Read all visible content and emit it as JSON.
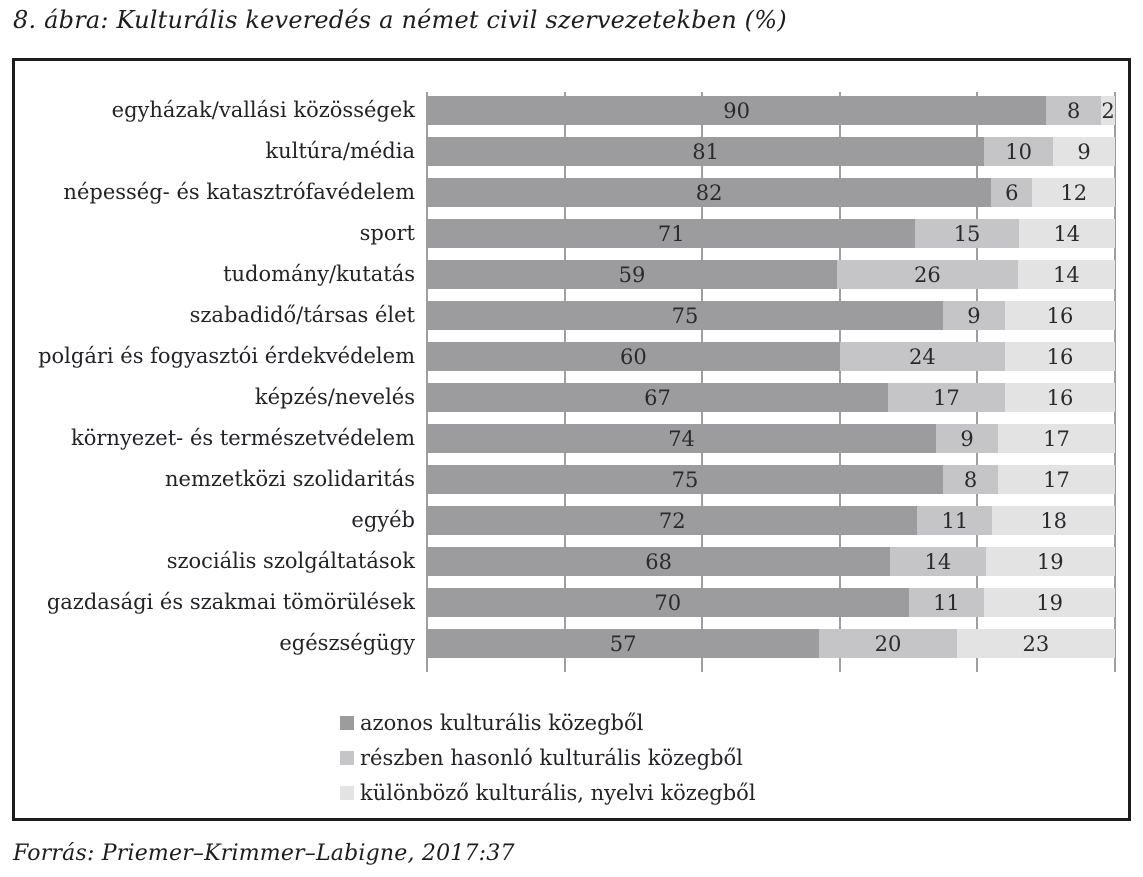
{
  "title": "8. ábra: Kulturális keveredés a német civil szervezetekben (%)",
  "source": "Forrás: Priemer–Krimmer–Labigne, 2017:37",
  "colors": {
    "same": "#9c9c9f",
    "partial": "#c5c5c7",
    "different": "#e3e3e4",
    "gridline": "#9e9ea1",
    "frame_border": "#1c1c1c",
    "text": "#232327"
  },
  "legend": [
    {
      "label": "azonos kulturális közegből",
      "color_key": "same"
    },
    {
      "label": "részben hasonló kulturális közegből",
      "color_key": "partial"
    },
    {
      "label": "különböző kulturális, nyelvi közegből",
      "color_key": "different"
    }
  ],
  "chart_data": {
    "type": "bar",
    "orientation": "horizontal",
    "stacked": true,
    "unit": "%",
    "title": "8. ábra: Kulturális keveredés a német civil szervezetekben (%)",
    "categories": [
      "egyházak/vallási közösségek",
      "kultúra/média",
      "népesség- és katasztrófavédelem",
      "sport",
      "tudomány/kutatás",
      "szabadidő/társas élet",
      "polgári és fogyasztói érdekvédelem",
      "képzés/nevelés",
      "környezet- és természetvédelem",
      "nemzetközi szolidaritás",
      "egyéb",
      "szociális szolgáltatások",
      "gazdasági és szakmai tömörülések",
      "egészségügy"
    ],
    "series": [
      {
        "name": "azonos kulturális közegből",
        "color_key": "same",
        "values": [
          90,
          81,
          82,
          71,
          59,
          75,
          60,
          67,
          74,
          75,
          72,
          68,
          70,
          57
        ]
      },
      {
        "name": "részben hasonló kulturális közegből",
        "color_key": "partial",
        "values": [
          8,
          10,
          6,
          15,
          26,
          9,
          24,
          17,
          9,
          8,
          11,
          14,
          11,
          20
        ]
      },
      {
        "name": "különböző kulturális, nyelvi közegből",
        "color_key": "different",
        "values": [
          2,
          9,
          12,
          14,
          14,
          16,
          16,
          16,
          17,
          17,
          18,
          19,
          19,
          23
        ]
      }
    ],
    "xlim": [
      0,
      100
    ],
    "grid": "vertical gridlines every 20%",
    "value_labels": "inside segments, centered",
    "legend_position": "bottom-inside-frame"
  }
}
